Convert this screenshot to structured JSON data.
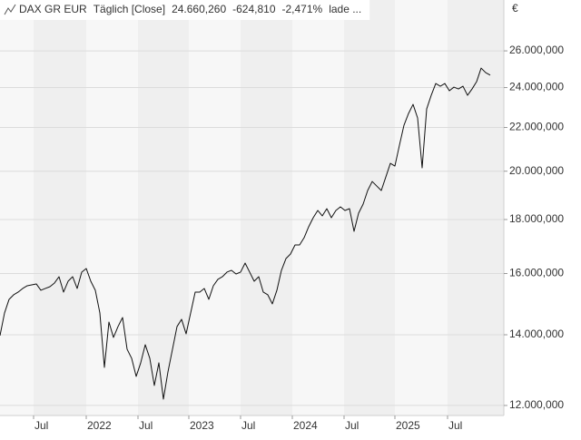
{
  "chart_data": {
    "type": "line",
    "title": "DAX GR EUR",
    "subtitle": "Täglich [Close]",
    "annotations": [
      "24.660,260",
      "-624,810",
      "-2,471%",
      "lade ..."
    ],
    "ylabel": "€",
    "log_scale": true,
    "grid": true,
    "color": "#111111",
    "annotation_color": "#d22020",
    "values": [
      13974,
      14682,
      15124,
      15274,
      15365,
      15487,
      15579,
      15610,
      15641,
      15426,
      15487,
      15548,
      15672,
      15890,
      15365,
      15733,
      15890,
      15487,
      16049,
      16176,
      15733,
      15426,
      14682,
      13039,
      14394,
      13919,
      14253,
      14537,
      13565,
      13300,
      12784,
      13169,
      13700,
      13300,
      12534,
      13169,
      12167,
      12911,
      13565,
      14253,
      14480,
      14029,
      14682,
      15365,
      15365,
      15487,
      15124,
      15579,
      15797,
      15890,
      16049,
      16111,
      15984,
      16049,
      16369,
      16049,
      15733,
      15890,
      15365,
      15274,
      14975,
      15426,
      16111,
      16530,
      16696,
      17029,
      17029,
      17300,
      17717,
      18070,
      18359,
      18142,
      18431,
      18070,
      18359,
      18504,
      18359,
      18431,
      17542,
      18250,
      18614,
      19175,
      19556,
      19363,
      19175,
      19751,
      20346,
      20226,
      21166,
      22108,
      22682,
      23136,
      22462,
      20146,
      22908,
      23598,
      24214,
      24071,
      24214,
      23834,
      24023,
      23927,
      24071,
      23598,
      23927,
      24311,
      25042,
      24794,
      24660
    ],
    "xlim": [
      0,
      111
    ],
    "xticks": [
      {
        "value": 7.4,
        "label": "Jul"
      },
      {
        "value": 19,
        "label": "2022"
      },
      {
        "value": 30.4,
        "label": "Jul"
      },
      {
        "value": 41.6,
        "label": "2023"
      },
      {
        "value": 53,
        "label": "Jul"
      },
      {
        "value": 64.4,
        "label": "2024"
      },
      {
        "value": 75.8,
        "label": "Jul"
      },
      {
        "value": 87,
        "label": "2025"
      },
      {
        "value": 98.6,
        "label": "Jul"
      }
    ],
    "ylim": [
      11740,
      29050
    ],
    "yticks": [
      {
        "value": 12000,
        "label": "12.000,000"
      },
      {
        "value": 14000,
        "label": "14.000,000"
      },
      {
        "value": 16000,
        "label": "16.000,000"
      },
      {
        "value": 18000,
        "label": "18.000,000"
      },
      {
        "value": 20000,
        "label": "20.000,000"
      },
      {
        "value": 22000,
        "label": "22.000,000"
      },
      {
        "value": 24000,
        "label": "24.000,000"
      },
      {
        "value": 26000,
        "label": "26.000,000"
      }
    ]
  }
}
